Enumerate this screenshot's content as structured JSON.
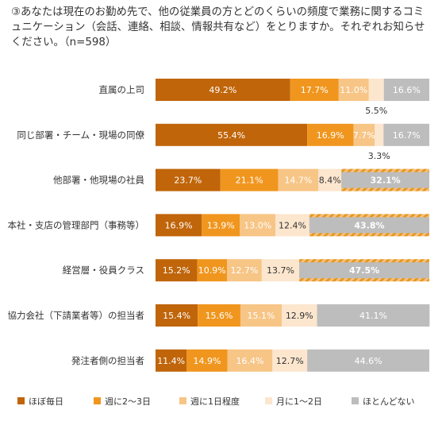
{
  "question": "③あなたは現在のお勤め先で、他の従業員の方とどのくらいの頻度で業務に関するコミュニケーション（会話、連絡、相談、情報共有など）をとりますか。それぞれお知らせください。（n=598）",
  "chart_data": {
    "type": "bar",
    "orientation": "horizontal",
    "stacked": true,
    "percent_stacked": true,
    "categories": [
      "直属の上司",
      "同じ部署・チーム・現場の同僚",
      "他部署・他現場の社員",
      "本社・支店の管理部門（事務等）",
      "経営層・役員クラス",
      "協力会社（下請業者等）の担当者",
      "発注者側の担当者"
    ],
    "series": [
      {
        "name": "ほぼ毎日",
        "color": "#C0650A",
        "values": [
          49.2,
          55.4,
          23.7,
          16.9,
          15.2,
          15.4,
          11.4
        ]
      },
      {
        "name": "週に2～3日",
        "color": "#F0961E",
        "values": [
          17.7,
          16.9,
          21.1,
          13.9,
          10.9,
          15.6,
          14.9
        ]
      },
      {
        "name": "週に1日程度",
        "color": "#F7C586",
        "values": [
          11.0,
          7.7,
          14.7,
          13.0,
          12.7,
          15.1,
          16.4
        ]
      },
      {
        "name": "月に1～2日",
        "color": "#FCE6CE",
        "values": [
          5.5,
          3.3,
          8.4,
          12.4,
          13.7,
          12.9,
          12.7
        ]
      },
      {
        "name": "ほとんどない",
        "color": "#BDBDBD",
        "values": [
          16.6,
          16.7,
          32.1,
          43.8,
          47.5,
          41.1,
          44.6
        ]
      }
    ],
    "value_labels": [
      [
        "49.2%",
        "17.7%",
        "11.0%",
        "5.5%",
        "16.6%"
      ],
      [
        "55.4%",
        "16.9%",
        "7.7%",
        "3.3%",
        "16.7%"
      ],
      [
        "23.7%",
        "21.1%",
        "14.7%",
        "8.4%",
        "32.1%"
      ],
      [
        "16.9%",
        "13.9%",
        "13.0%",
        "12.4%",
        "43.8%"
      ],
      [
        "15.2%",
        "10.9%",
        "12.7%",
        "13.7%",
        "47.5%"
      ],
      [
        "15.4%",
        "15.6%",
        "15.1%",
        "12.9%",
        "41.1%"
      ],
      [
        "11.4%",
        "14.9%",
        "16.4%",
        "12.7%",
        "44.6%"
      ]
    ],
    "highlighted": [
      [
        false,
        false,
        false,
        false,
        false
      ],
      [
        false,
        false,
        false,
        false,
        false
      ],
      [
        false,
        false,
        false,
        false,
        true
      ],
      [
        false,
        false,
        false,
        false,
        true
      ],
      [
        false,
        false,
        false,
        false,
        true
      ],
      [
        false,
        false,
        false,
        false,
        false
      ],
      [
        false,
        false,
        false,
        false,
        false
      ]
    ],
    "xlim": [
      0,
      100
    ],
    "grid": false,
    "legend_position": "bottom"
  }
}
